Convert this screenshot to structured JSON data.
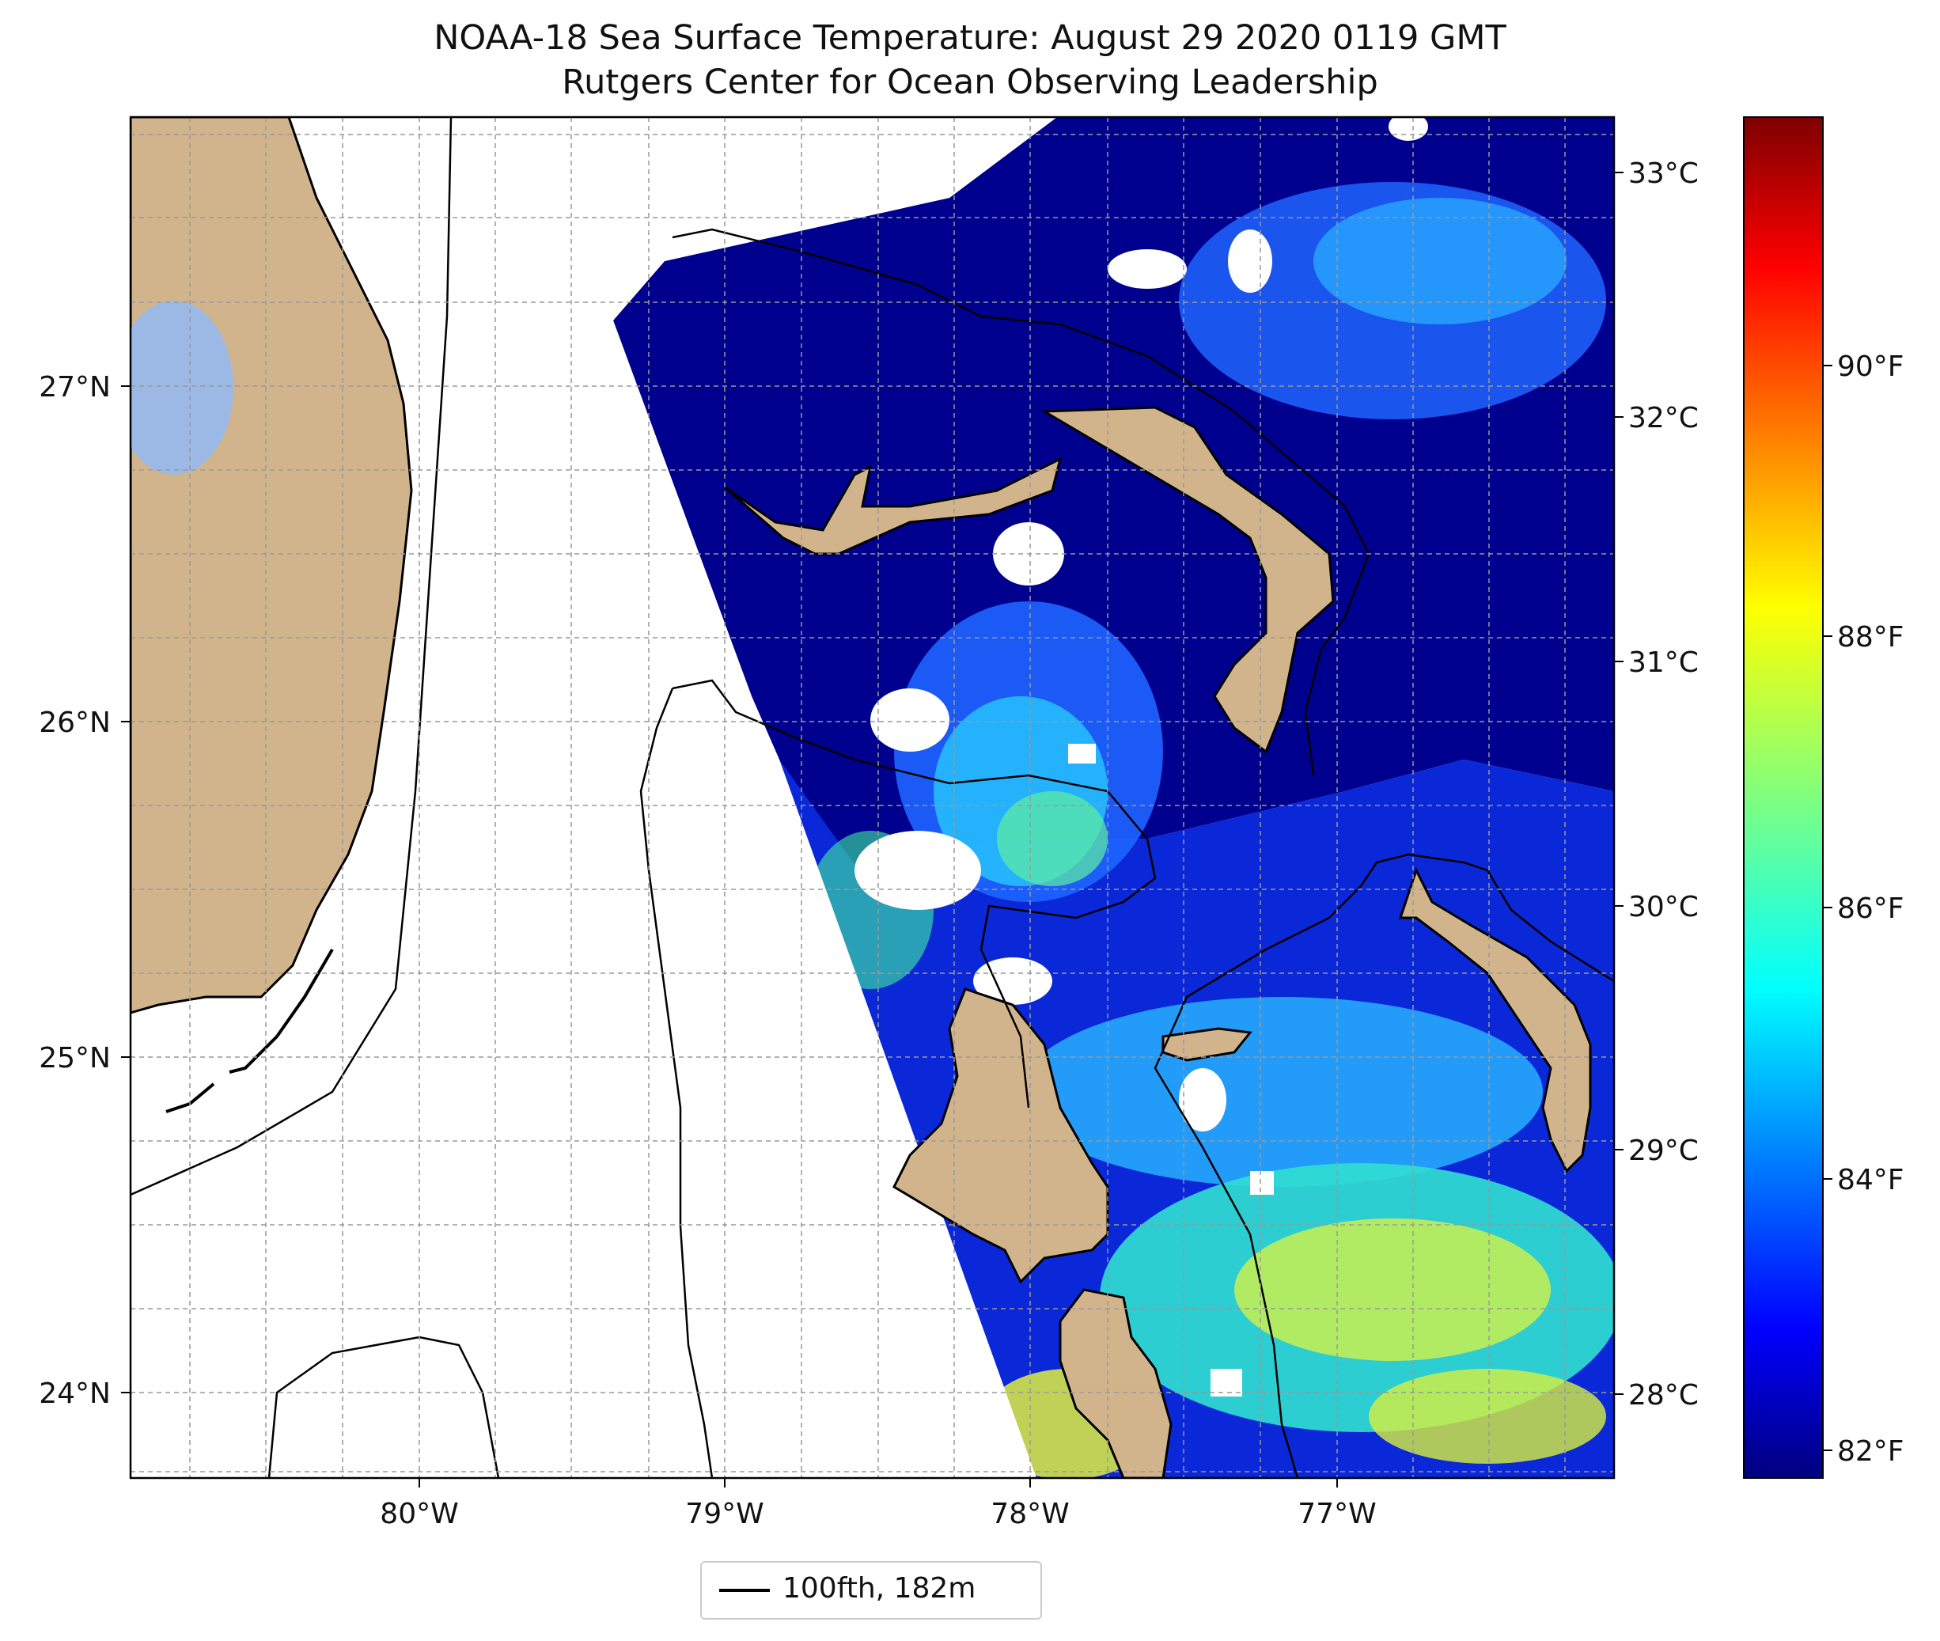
{
  "title": "NOAA-18 Sea Surface Temperature: August 29 2020 0119 GMT",
  "subtitle": "Rutgers Center for Ocean Observing Leadership",
  "map": {
    "lat_labels": [
      "27°N",
      "26°N",
      "25°N",
      "24°N"
    ],
    "lon_labels": [
      "80°W",
      "79°W",
      "78°W",
      "77°W"
    ],
    "colors": {
      "land": "#d2b48c",
      "lake": "#9bb9e4",
      "water_none": "#ffffff",
      "sst_cold": "#00008f",
      "sst_cool": "#1e50ff",
      "sst_mid": "#20d0ff",
      "sst_green": "#40f0a0",
      "sst_warm": "#d8f040"
    }
  },
  "colorbar": {
    "celsius_labels": [
      "33°C",
      "32°C",
      "31°C",
      "30°C",
      "29°C",
      "28°C"
    ],
    "fahrenheit_labels": [
      "90°F",
      "88°F",
      "86°F",
      "84°F",
      "82°F"
    ],
    "colormap": "jet"
  },
  "legend": {
    "label": "100fth, 182m"
  }
}
